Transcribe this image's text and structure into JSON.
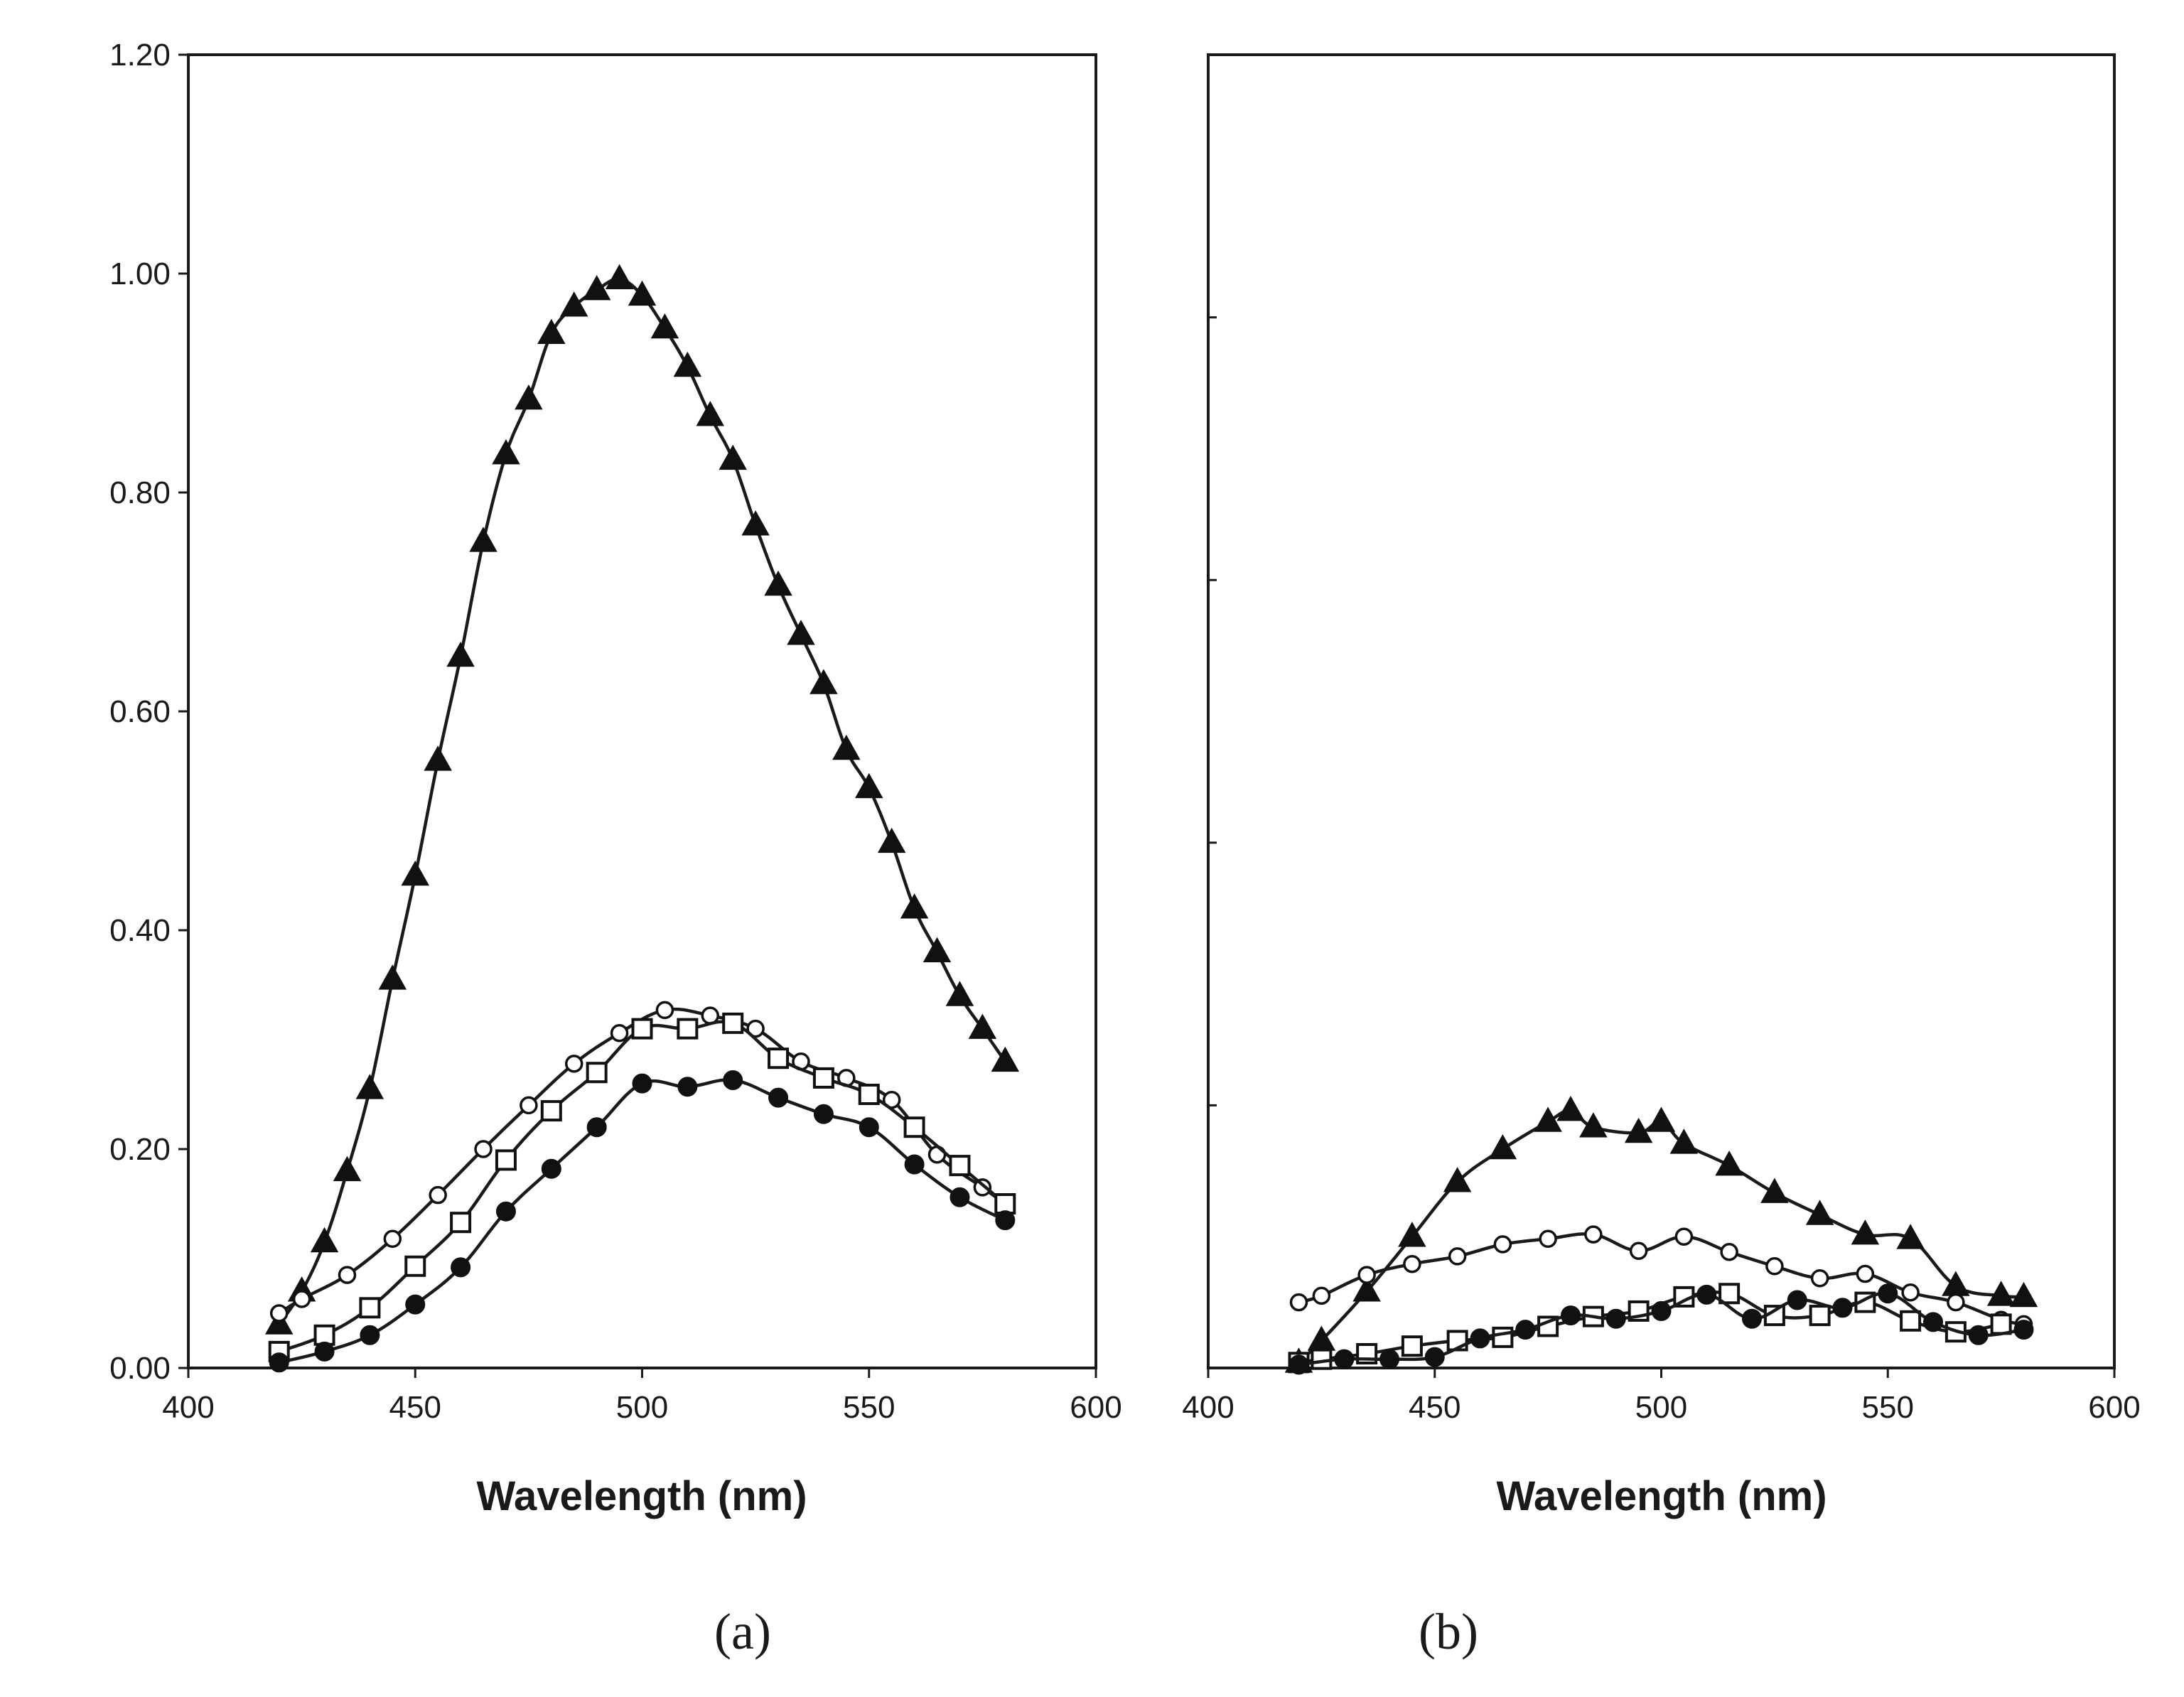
{
  "chart_data": [
    {
      "type": "line",
      "panel_label": "(a)",
      "xlabel": "Wavelength (nm)",
      "ylabel": "",
      "xlim": [
        400,
        600
      ],
      "ylim": [
        0,
        1.2
      ],
      "xticks": [
        400,
        450,
        500,
        550,
        600
      ],
      "xtick_labels": [
        "400",
        "450",
        "500",
        "550",
        "600"
      ],
      "yticks": [
        0,
        0.2,
        0.4,
        0.6,
        0.8,
        1.0,
        1.2
      ],
      "ytick_labels": [
        "0.00",
        "0.20",
        "0.40",
        "0.60",
        "0.80",
        "1.00",
        "1.20"
      ],
      "grid": false,
      "series": [
        {
          "name": "filled-triangle",
          "marker": "triangle-filled",
          "x": [
            420,
            425,
            430,
            435,
            440,
            445,
            450,
            455,
            460,
            465,
            470,
            475,
            480,
            485,
            490,
            495,
            500,
            505,
            510,
            515,
            520,
            525,
            530,
            535,
            540,
            545,
            550,
            555,
            560,
            565,
            570,
            575,
            580
          ],
          "y": [
            0.04,
            0.07,
            0.115,
            0.18,
            0.255,
            0.355,
            0.45,
            0.555,
            0.65,
            0.755,
            0.835,
            0.885,
            0.945,
            0.97,
            0.985,
            0.995,
            0.98,
            0.95,
            0.915,
            0.87,
            0.83,
            0.77,
            0.715,
            0.67,
            0.625,
            0.565,
            0.53,
            0.48,
            0.42,
            0.38,
            0.34,
            0.31,
            0.28
          ]
        },
        {
          "name": "open-circle",
          "marker": "circle-open",
          "x": [
            420,
            425,
            435,
            445,
            455,
            465,
            475,
            485,
            495,
            505,
            515,
            525,
            535,
            545,
            555,
            565,
            575,
            580
          ],
          "y": [
            0.05,
            0.063,
            0.085,
            0.118,
            0.158,
            0.2,
            0.24,
            0.278,
            0.306,
            0.327,
            0.322,
            0.31,
            0.28,
            0.265,
            0.245,
            0.195,
            0.165,
            0.15
          ]
        },
        {
          "name": "open-square",
          "marker": "square-open",
          "x": [
            420,
            430,
            440,
            450,
            460,
            470,
            480,
            490,
            500,
            510,
            520,
            530,
            540,
            550,
            560,
            570,
            580
          ],
          "y": [
            0.015,
            0.03,
            0.055,
            0.093,
            0.133,
            0.19,
            0.235,
            0.27,
            0.31,
            0.31,
            0.315,
            0.283,
            0.265,
            0.25,
            0.22,
            0.185,
            0.15
          ]
        },
        {
          "name": "filled-circle",
          "marker": "circle-filled",
          "x": [
            420,
            430,
            440,
            450,
            460,
            470,
            480,
            490,
            500,
            510,
            520,
            530,
            540,
            550,
            560,
            570,
            580
          ],
          "y": [
            0.005,
            0.015,
            0.03,
            0.058,
            0.092,
            0.143,
            0.182,
            0.22,
            0.26,
            0.257,
            0.263,
            0.247,
            0.232,
            0.22,
            0.186,
            0.156,
            0.135
          ]
        }
      ]
    },
    {
      "type": "line",
      "panel_label": "(b)",
      "xlabel": "Wavelength (nm)",
      "ylabel": "",
      "xlim": [
        400,
        600
      ],
      "ylim": [
        0,
        1.2
      ],
      "xticks": [
        400,
        450,
        500,
        550,
        600
      ],
      "xtick_labels": [
        "400",
        "450",
        "500",
        "550",
        "600"
      ],
      "yticks": [
        0,
        0.24,
        0.48,
        0.72,
        0.96,
        1.2
      ],
      "ytick_labels": [
        "",
        "",
        "",
        "",
        "",
        ""
      ],
      "grid": false,
      "series": [
        {
          "name": "filled-triangle",
          "marker": "triangle-filled",
          "x": [
            420,
            425,
            435,
            445,
            455,
            465,
            475,
            480,
            485,
            495,
            500,
            505,
            515,
            525,
            535,
            545,
            555,
            565,
            575,
            580
          ],
          "y": [
            0.005,
            0.025,
            0.07,
            0.12,
            0.17,
            0.2,
            0.225,
            0.235,
            0.22,
            0.215,
            0.225,
            0.205,
            0.185,
            0.16,
            0.14,
            0.122,
            0.118,
            0.075,
            0.066,
            0.065
          ]
        },
        {
          "name": "open-circle",
          "marker": "circle-open",
          "x": [
            420,
            425,
            435,
            445,
            455,
            465,
            475,
            485,
            495,
            505,
            515,
            525,
            535,
            545,
            555,
            565,
            575,
            580
          ],
          "y": [
            0.06,
            0.066,
            0.085,
            0.095,
            0.102,
            0.113,
            0.118,
            0.122,
            0.107,
            0.12,
            0.106,
            0.093,
            0.082,
            0.086,
            0.069,
            0.06,
            0.044,
            0.04
          ]
        },
        {
          "name": "open-square",
          "marker": "square-open",
          "x": [
            420,
            425,
            435,
            445,
            455,
            465,
            475,
            485,
            495,
            505,
            515,
            525,
            535,
            545,
            555,
            565,
            575
          ],
          "y": [
            0.005,
            0.008,
            0.013,
            0.02,
            0.025,
            0.028,
            0.038,
            0.047,
            0.052,
            0.065,
            0.068,
            0.048,
            0.048,
            0.06,
            0.043,
            0.033,
            0.04
          ]
        },
        {
          "name": "filled-circle",
          "marker": "circle-filled",
          "x": [
            420,
            430,
            440,
            450,
            460,
            470,
            480,
            490,
            500,
            510,
            520,
            530,
            540,
            550,
            560,
            570,
            580
          ],
          "y": [
            0.003,
            0.008,
            0.008,
            0.01,
            0.027,
            0.035,
            0.048,
            0.045,
            0.052,
            0.067,
            0.045,
            0.062,
            0.055,
            0.068,
            0.042,
            0.03,
            0.035
          ]
        }
      ]
    }
  ]
}
